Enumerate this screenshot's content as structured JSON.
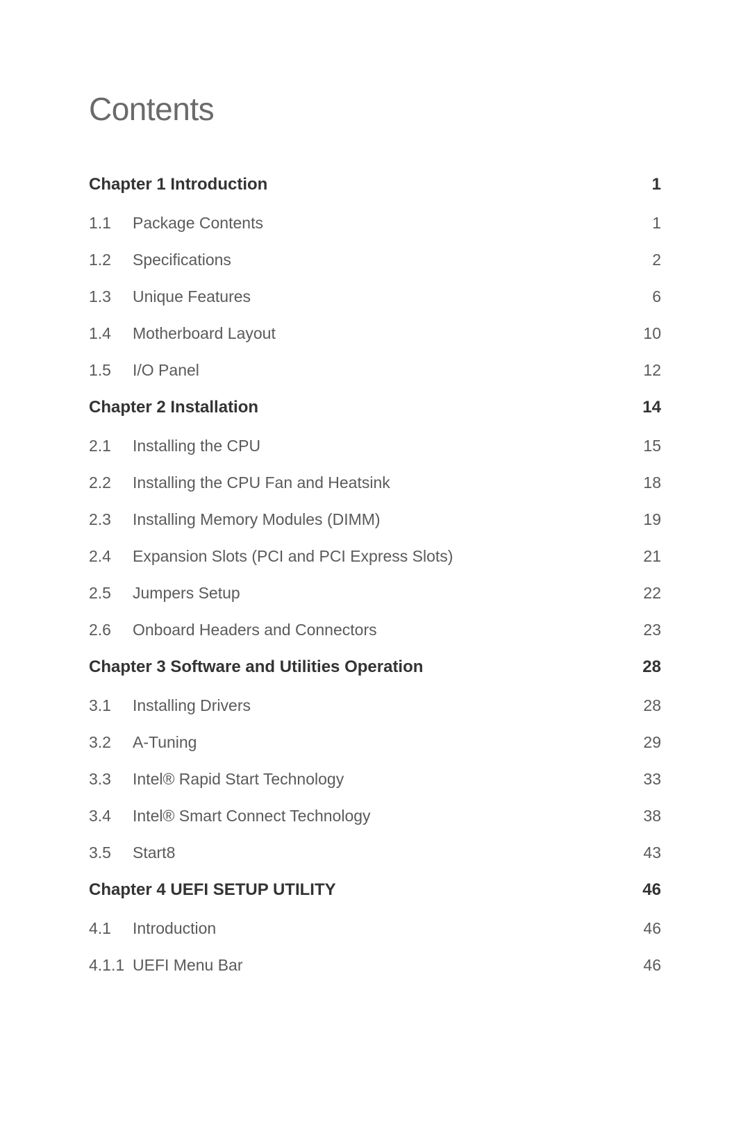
{
  "title": "Contents",
  "entries": [
    {
      "type": "chapter",
      "label": "Chapter  1  Introduction",
      "page": "1"
    },
    {
      "type": "section",
      "num": "1.1",
      "label": "Package Contents",
      "page": "1"
    },
    {
      "type": "section",
      "num": "1.2",
      "label": "Specifications",
      "page": "2"
    },
    {
      "type": "section",
      "num": "1.3",
      "label": "Unique Features",
      "page": "6"
    },
    {
      "type": "section",
      "num": "1.4",
      "label": "Motherboard Layout",
      "page": "10"
    },
    {
      "type": "section",
      "num": "1.5",
      "label": "I/O Panel",
      "page": "12"
    },
    {
      "type": "chapter",
      "label": "Chapter  2  Installation",
      "page": "14"
    },
    {
      "type": "section",
      "num": "2.1",
      "label": "Installing the CPU",
      "page": "15"
    },
    {
      "type": "section",
      "num": "2.2",
      "label": "Installing the CPU Fan and Heatsink",
      "page": "18"
    },
    {
      "type": "section",
      "num": "2.3",
      "label": "Installing Memory Modules (DIMM)",
      "page": "19"
    },
    {
      "type": "section",
      "num": "2.4",
      "label": "Expansion Slots (PCI and PCI Express Slots)",
      "page": "21"
    },
    {
      "type": "section",
      "num": "2.5",
      "label": "Jumpers Setup",
      "page": "22"
    },
    {
      "type": "section",
      "num": "2.6",
      "label": "Onboard Headers and Connectors",
      "page": "23"
    },
    {
      "type": "chapter",
      "label": "Chapter  3  Software and Utilities Operation",
      "page": "28"
    },
    {
      "type": "section",
      "num": "3.1",
      "label": "Installing Drivers",
      "page": "28"
    },
    {
      "type": "section",
      "num": "3.2",
      "label": "A-Tuning",
      "page": "29"
    },
    {
      "type": "section",
      "num": "3.3",
      "label": "Intel® Rapid Start Technology",
      "page": "33"
    },
    {
      "type": "section",
      "num": "3.4",
      "label": "Intel® Smart Connect Technology",
      "page": "38"
    },
    {
      "type": "section",
      "num": "3.5",
      "label": "Start8",
      "page": "43"
    },
    {
      "type": "chapter",
      "label": "Chapter  4  UEFI SETUP UTILITY",
      "page": "46"
    },
    {
      "type": "section",
      "num": "4.1",
      "label": "Introduction",
      "page": "46"
    },
    {
      "type": "section",
      "num": "4.1.1",
      "label": "UEFI Menu Bar",
      "page": "46"
    }
  ]
}
